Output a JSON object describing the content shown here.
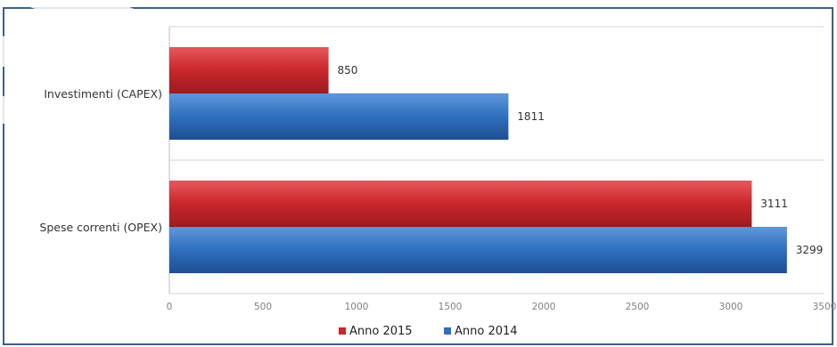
{
  "chart_data": {
    "type": "bar",
    "orientation": "horizontal",
    "title": "",
    "xlabel": "",
    "ylabel": "",
    "categories": [
      "Investimenti (CAPEX)",
      "Spese correnti (OPEX)"
    ],
    "series": [
      {
        "name": "Anno 2015",
        "color": "#c8262b",
        "values": [
          850,
          3111
        ]
      },
      {
        "name": "Anno 2014",
        "color": "#2f6fbd",
        "values": [
          1811,
          3299
        ]
      }
    ],
    "xlim": [
      0,
      3500
    ],
    "xticks": [
      "0",
      "500",
      "1000",
      "1500",
      "2000",
      "2500",
      "3000",
      "3500"
    ],
    "grid": true,
    "legend": "bottom"
  }
}
